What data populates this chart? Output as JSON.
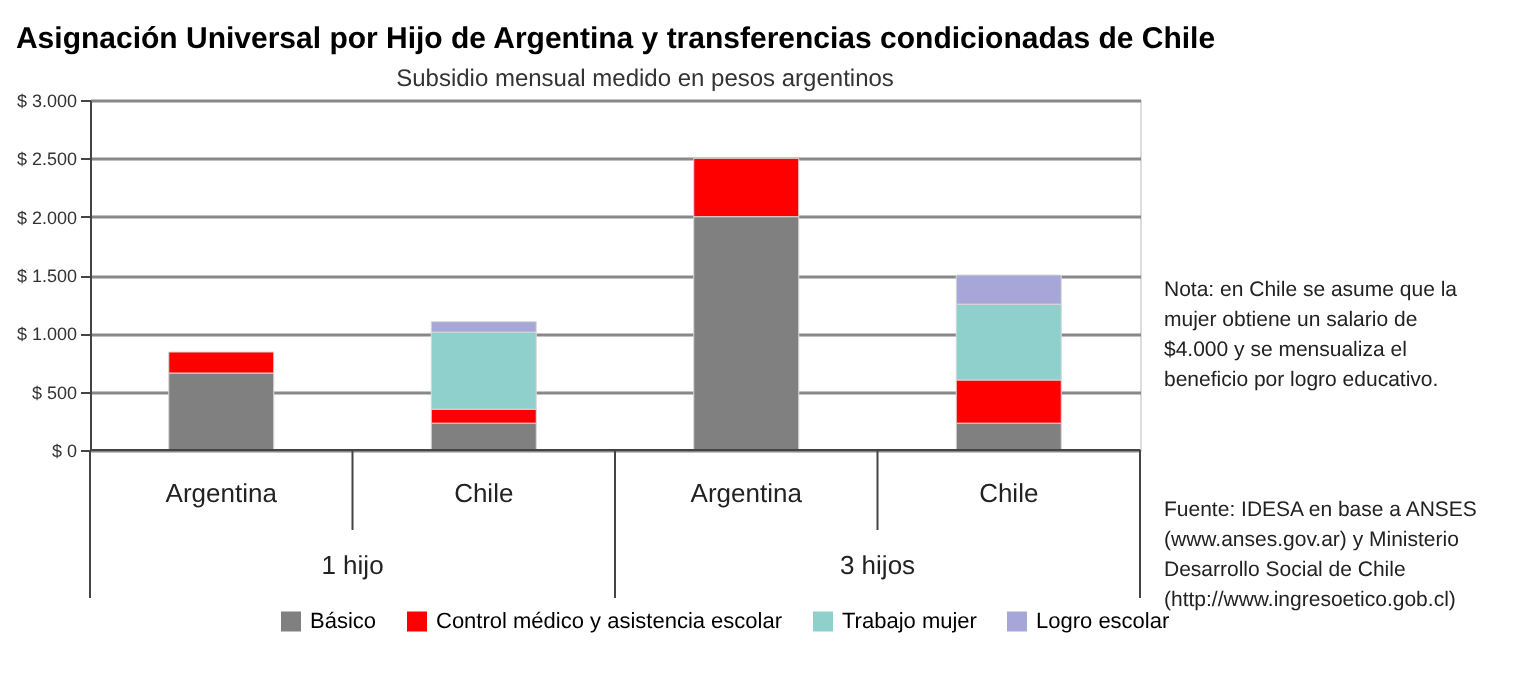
{
  "chart_data": {
    "type": "bar",
    "stacked": true,
    "title": "Asignación Universal por Hijo de Argentina y transferencias condicionadas de Chile",
    "subtitle": "Subsidio mensual medido en pesos argentinos",
    "categories": [
      "Argentina",
      "Chile",
      "Argentina",
      "Chile"
    ],
    "series": [
      {
        "name": "Básico",
        "color": "#808080",
        "values": [
          660,
          230,
          2000,
          230
        ]
      },
      {
        "name": "Control médico y asistencia escolar",
        "color": "#ff0000",
        "values": [
          180,
          120,
          500,
          370
        ]
      },
      {
        "name": "Trabajo mujer",
        "color": "#8fd0cc",
        "values": [
          null,
          660,
          null,
          650
        ]
      },
      {
        "name": "Logro escolar",
        "color": "#a6a6d8",
        "values": [
          null,
          90,
          null,
          250
        ]
      }
    ],
    "ylim": [
      0,
      3000
    ],
    "yticks": [
      {
        "value": 0,
        "label": "$ 0"
      },
      {
        "value": 500,
        "label": "$ 500"
      },
      {
        "value": 1000,
        "label": "$ 1.000"
      },
      {
        "value": 1500,
        "label": "$ 1.500"
      },
      {
        "value": 2000,
        "label": "$ 2.000"
      },
      {
        "value": 2500,
        "label": "$ 2.500"
      },
      {
        "value": 3000,
        "label": "$ 3.000"
      }
    ],
    "grid": "y",
    "legend": "bottom",
    "annotations": [
      "1 hijo",
      "3 hijos",
      "Nota: en Chile se asume que la mujer obtiene un salario de $4.000 y se mensualiza el beneficio por logro educativo.",
      "Fuente: IDESA en base a ANSES (www.anses.gov.ar) y Ministerio Desarrollo Social de Chile (http://www.ingresoetico.gob.cl)"
    ]
  }
}
